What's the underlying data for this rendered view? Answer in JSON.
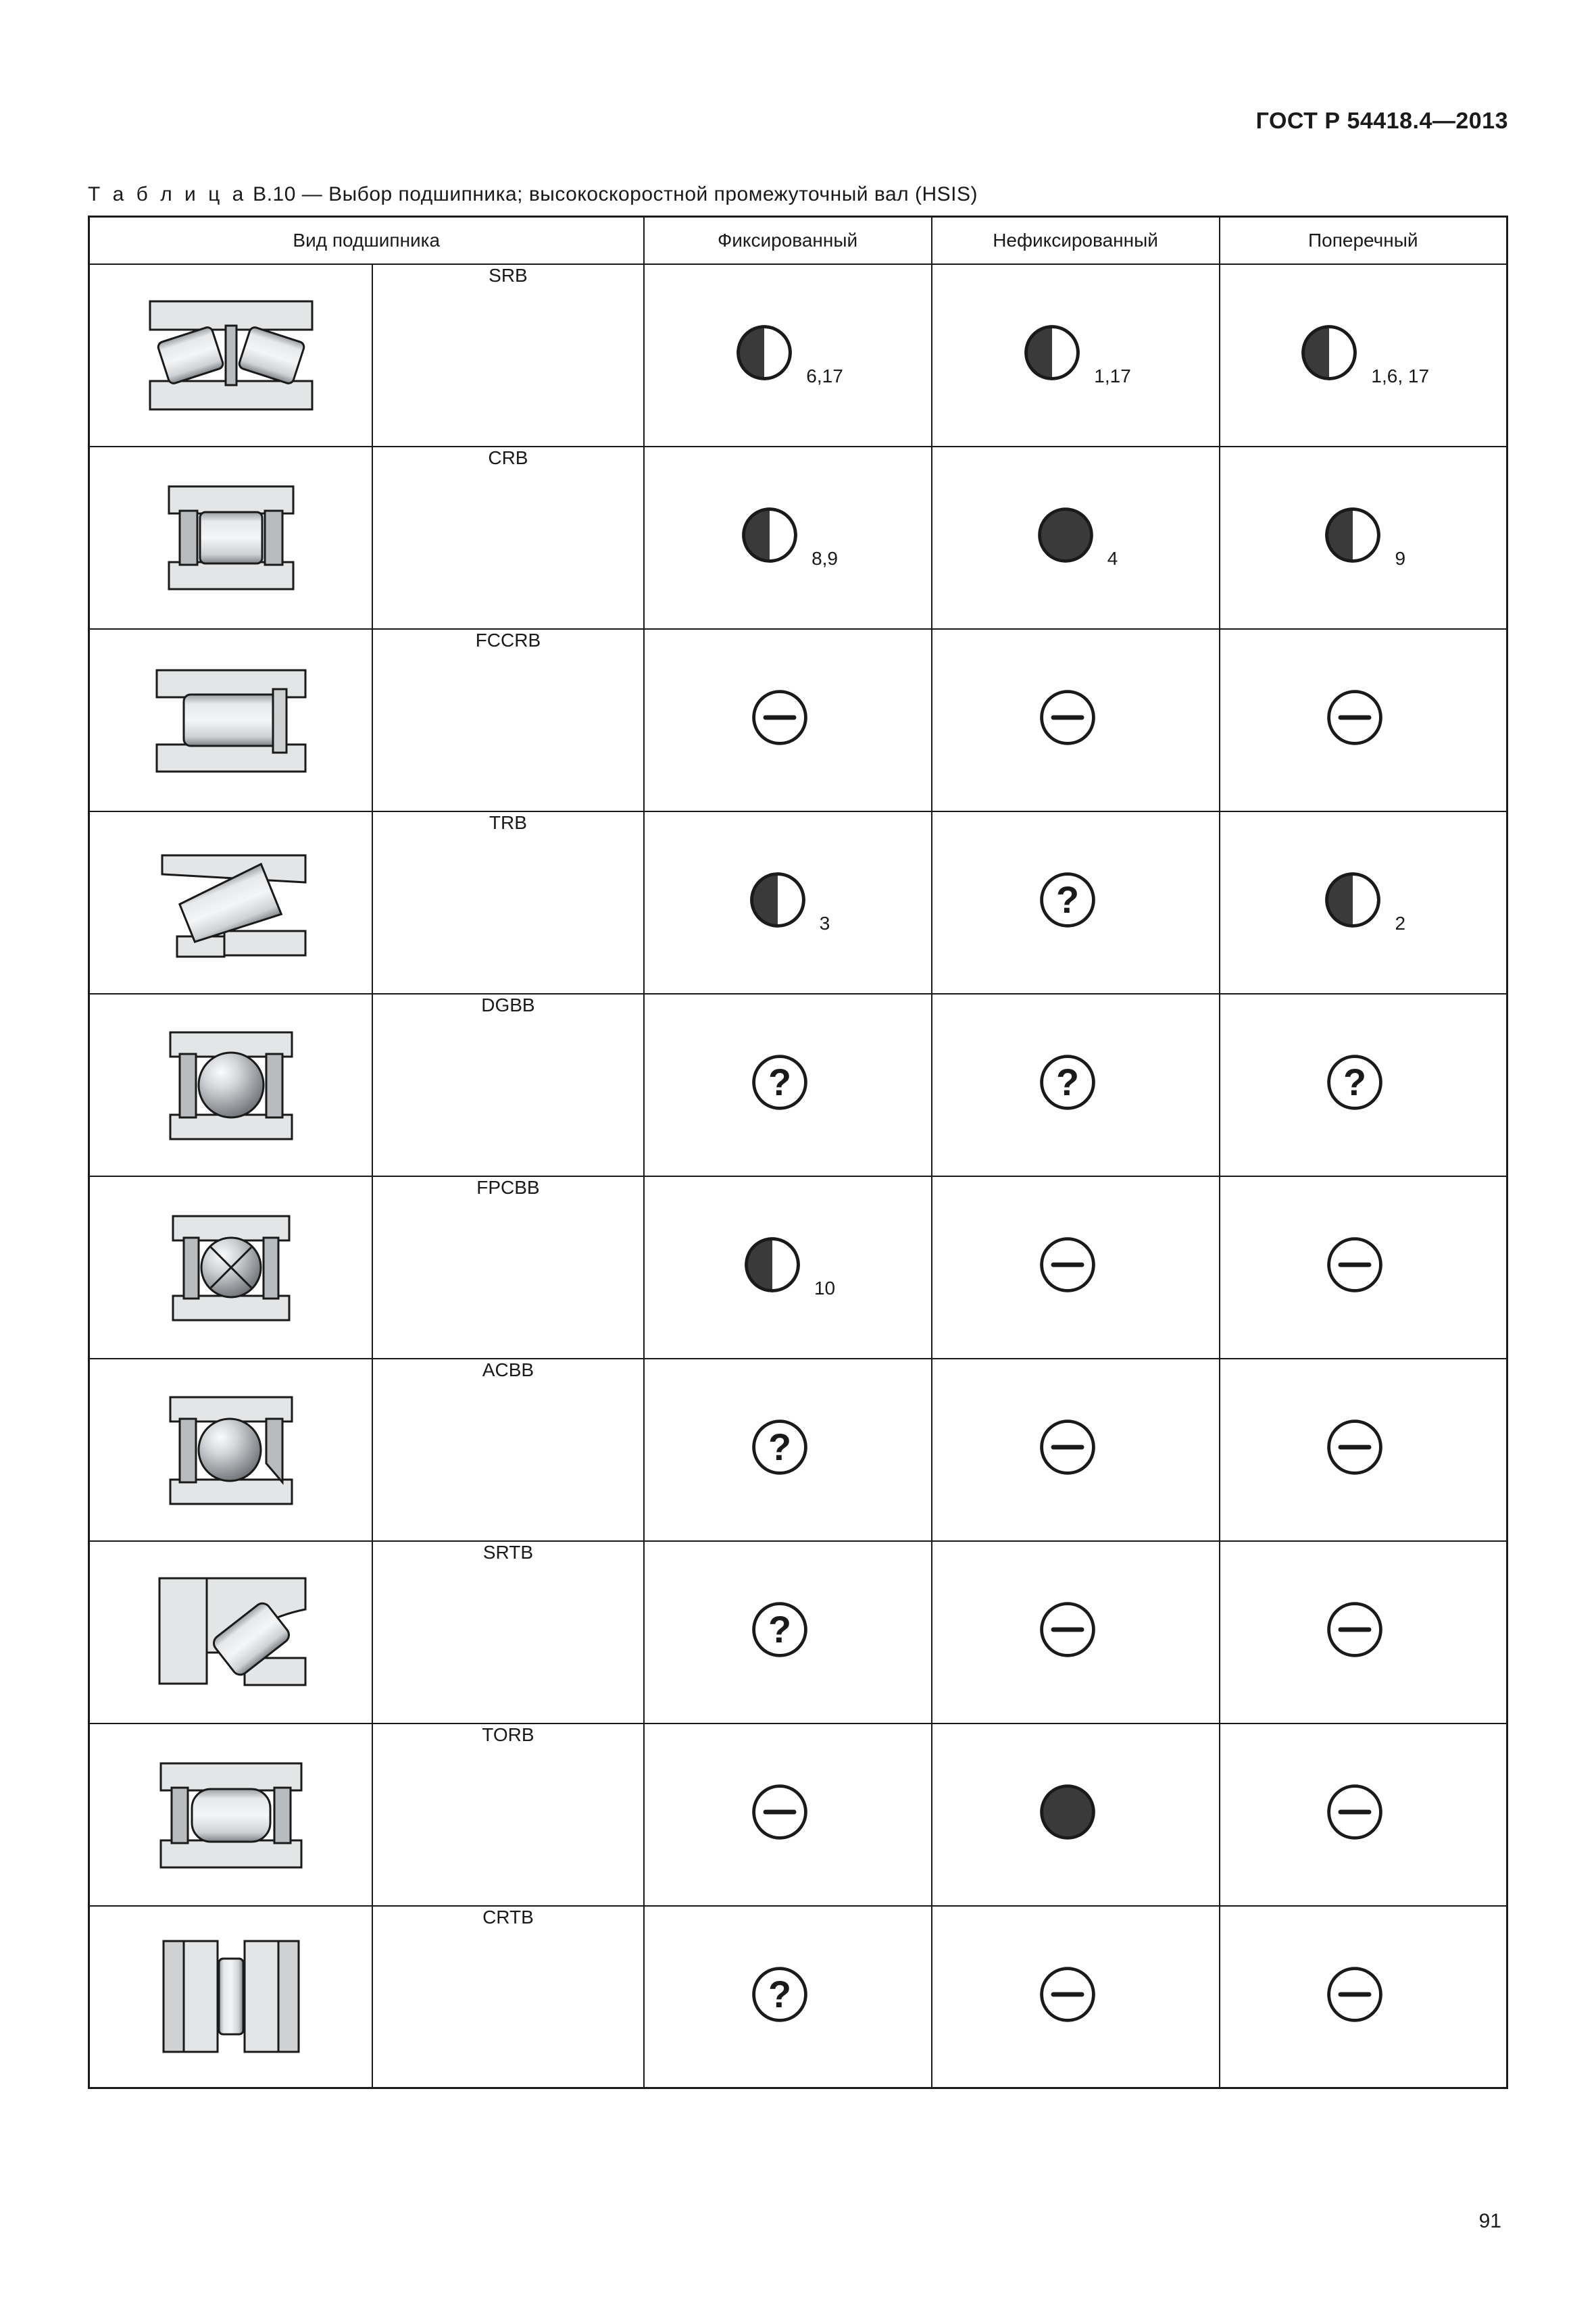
{
  "document": {
    "standard_title": "ГОСТ Р 54418.4—2013",
    "page_number": "91",
    "table_caption_word": "Т а б л и ц а",
    "table_caption_rest": "  В.10 — Выбор подшипника; высокоскоростной промежуточный вал (HSIS)"
  },
  "colors": {
    "stroke": "#1a1a1a",
    "icon_fill": "#3a3a3a",
    "metal_light": "#e4e5e6",
    "metal_mid": "#b9bcbf",
    "metal_midlight": "#cfd1d3",
    "metal_dark": "#8a8d91",
    "metal_darker": "#6f7377",
    "roller_light": "#d6d8da",
    "roller_dark": "#9a9ea2",
    "ball_hi": "#f1f2f3",
    "ball_lo": "#7a7e82",
    "bg_white": "#ffffff"
  },
  "headers": {
    "col1": "Вид подшипника",
    "col2": "Фиксированный",
    "col3": "Нефиксированный",
    "col4": "Поперечный"
  },
  "rows": [
    {
      "code": "SRB",
      "img": "srb",
      "ratings": [
        {
          "kind": "half",
          "note": "6,17"
        },
        {
          "kind": "half",
          "note": "1,17"
        },
        {
          "kind": "half",
          "note": "1,6, 17"
        }
      ]
    },
    {
      "code": "CRB",
      "img": "crb",
      "ratings": [
        {
          "kind": "half",
          "note": "8,9"
        },
        {
          "kind": "full",
          "note": "4"
        },
        {
          "kind": "half",
          "note": "9"
        }
      ]
    },
    {
      "code": "FCCRB",
      "img": "fccrb",
      "ratings": [
        {
          "kind": "dash",
          "note": ""
        },
        {
          "kind": "dash",
          "note": ""
        },
        {
          "kind": "dash",
          "note": ""
        }
      ]
    },
    {
      "code": "TRB",
      "img": "trb",
      "ratings": [
        {
          "kind": "half",
          "note": "3"
        },
        {
          "kind": "question",
          "note": ""
        },
        {
          "kind": "half",
          "note": "2"
        }
      ]
    },
    {
      "code": "DGBB",
      "img": "dgbb",
      "ratings": [
        {
          "kind": "question",
          "note": ""
        },
        {
          "kind": "question",
          "note": ""
        },
        {
          "kind": "question",
          "note": ""
        }
      ]
    },
    {
      "code": "FPCBB",
      "img": "fpcbb",
      "ratings": [
        {
          "kind": "half",
          "note": "10"
        },
        {
          "kind": "dash",
          "note": ""
        },
        {
          "kind": "dash",
          "note": ""
        }
      ]
    },
    {
      "code": "ACBB",
      "img": "acbb",
      "ratings": [
        {
          "kind": "question",
          "note": ""
        },
        {
          "kind": "dash",
          "note": ""
        },
        {
          "kind": "dash",
          "note": ""
        }
      ]
    },
    {
      "code": "SRTB",
      "img": "srtb",
      "ratings": [
        {
          "kind": "question",
          "note": ""
        },
        {
          "kind": "dash",
          "note": ""
        },
        {
          "kind": "dash",
          "note": ""
        }
      ]
    },
    {
      "code": "TORB",
      "img": "torb",
      "ratings": [
        {
          "kind": "dash",
          "note": ""
        },
        {
          "kind": "full",
          "note": ""
        },
        {
          "kind": "dash",
          "note": ""
        }
      ]
    },
    {
      "code": "CRTB",
      "img": "crtb",
      "ratings": [
        {
          "kind": "question",
          "note": ""
        },
        {
          "kind": "dash",
          "note": ""
        },
        {
          "kind": "dash",
          "note": ""
        }
      ]
    }
  ]
}
